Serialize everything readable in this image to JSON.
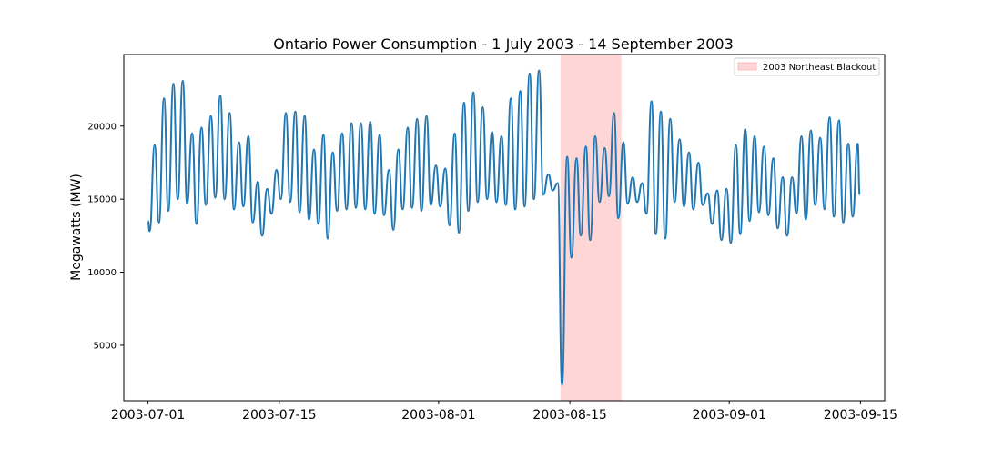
{
  "chart_data": {
    "type": "line",
    "title": "Ontario Power Consumption - 1 July 2003 - 14 September 2003",
    "xlabel": "",
    "ylabel": "Megawatts (MW)",
    "xlim": [
      "2003-06-28T10:00",
      "2003-09-17T14:00"
    ],
    "ylim": [
      1200,
      24900
    ],
    "xticks": [
      "2003-07-01",
      "2003-07-15",
      "2003-08-01",
      "2003-08-15",
      "2003-09-01",
      "2003-09-15"
    ],
    "yticks": [
      5000,
      10000,
      15000,
      20000
    ],
    "grid": false,
    "legend_position": "top-right",
    "series_color": "#1f77b4",
    "blackout_color": "#ff9999",
    "series": [
      {
        "name": "",
        "sampling": "one min/max pair per day (night low, afternoon peak)",
        "dates": [
          "2003-07-01",
          "2003-07-02",
          "2003-07-03",
          "2003-07-04",
          "2003-07-05",
          "2003-07-06",
          "2003-07-07",
          "2003-07-08",
          "2003-07-09",
          "2003-07-10",
          "2003-07-11",
          "2003-07-12",
          "2003-07-13",
          "2003-07-14",
          "2003-07-15",
          "2003-07-16",
          "2003-07-17",
          "2003-07-18",
          "2003-07-19",
          "2003-07-20",
          "2003-07-21",
          "2003-07-22",
          "2003-07-23",
          "2003-07-24",
          "2003-07-25",
          "2003-07-26",
          "2003-07-27",
          "2003-07-28",
          "2003-07-29",
          "2003-07-30",
          "2003-07-31",
          "2003-08-01",
          "2003-08-02",
          "2003-08-03",
          "2003-08-04",
          "2003-08-05",
          "2003-08-06",
          "2003-08-07",
          "2003-08-08",
          "2003-08-09",
          "2003-08-10",
          "2003-08-11",
          "2003-08-12",
          "2003-08-13",
          "2003-08-14",
          "2003-08-15",
          "2003-08-16",
          "2003-08-17",
          "2003-08-18",
          "2003-08-19",
          "2003-08-20",
          "2003-08-21",
          "2003-08-22",
          "2003-08-23",
          "2003-08-24",
          "2003-08-25",
          "2003-08-26",
          "2003-08-27",
          "2003-08-28",
          "2003-08-29",
          "2003-08-30",
          "2003-08-31",
          "2003-09-01",
          "2003-09-02",
          "2003-09-03",
          "2003-09-04",
          "2003-09-05",
          "2003-09-06",
          "2003-09-07",
          "2003-09-08",
          "2003-09-09",
          "2003-09-10",
          "2003-09-11",
          "2003-09-12",
          "2003-09-13",
          "2003-09-14"
        ],
        "daily_min": [
          12800,
          13400,
          14200,
          15000,
          14700,
          13300,
          14600,
          15100,
          15000,
          14300,
          14500,
          13400,
          12500,
          14000,
          15000,
          14800,
          14100,
          13600,
          13300,
          12300,
          14200,
          14300,
          14400,
          14300,
          14000,
          13900,
          12900,
          14300,
          14400,
          14200,
          14600,
          14500,
          13200,
          12700,
          14200,
          14800,
          15000,
          14800,
          14600,
          14300,
          14500,
          15000,
          15300,
          15600,
          2300,
          11000,
          12500,
          12200,
          14800,
          15200,
          13700,
          14700,
          14800,
          14000,
          12600,
          12300,
          14800,
          14500,
          14300,
          14600,
          13300,
          12200,
          12000,
          12600,
          13500,
          14100,
          13900,
          13000,
          12500,
          14000,
          13600,
          14600,
          14300,
          13800,
          13400,
          13800
        ],
        "daily_max": [
          18700,
          21900,
          22900,
          23100,
          19500,
          19900,
          20700,
          22100,
          20900,
          18900,
          19300,
          16200,
          15700,
          17000,
          20900,
          21000,
          20700,
          18400,
          19400,
          18200,
          19500,
          20200,
          20200,
          20300,
          19400,
          17000,
          18400,
          19900,
          20500,
          20700,
          17300,
          17100,
          19500,
          21600,
          22300,
          21300,
          19600,
          19300,
          21900,
          22400,
          23600,
          23800,
          16700,
          16100,
          17900,
          17800,
          18600,
          19300,
          18500,
          20900,
          18900,
          16500,
          16100,
          21700,
          21000,
          20500,
          19100,
          18200,
          17500,
          15400,
          15600,
          15700,
          18700,
          19800,
          19300,
          18600,
          17800,
          16500,
          16500,
          19300,
          19700,
          19200,
          20600,
          20400,
          18800,
          18800
        ],
        "end": {
          "date": "2003-09-14T22:00",
          "value": 15300
        }
      }
    ],
    "annotations": [
      {
        "type": "span",
        "label": "2003 Northeast Blackout",
        "x_start": "2003-08-14T00:00",
        "x_end": "2003-08-20T12:00"
      }
    ]
  }
}
